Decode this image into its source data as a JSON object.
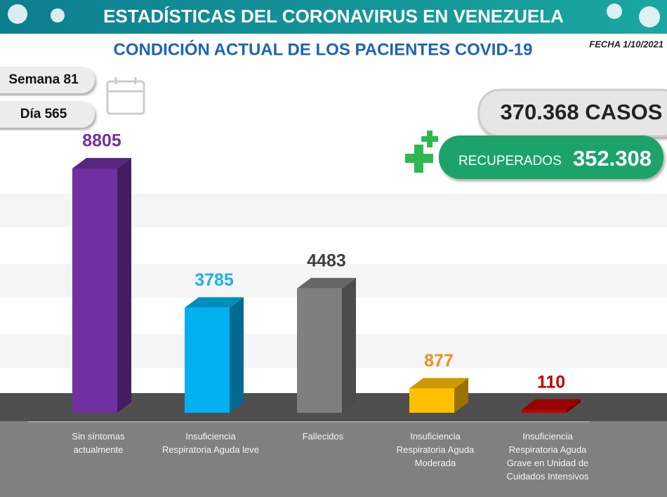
{
  "chart_data": {
    "type": "bar3d",
    "title": "ESTADÍSTICAS DEL CORONAVIRUS EN VENEZUELA",
    "subtitle": "CONDICIÓN ACTUAL DE LOS PACIENTES COVID-19",
    "date": "FECHA 1/10/2021",
    "week": "Semana 81",
    "day": "Día 565",
    "total_cases": "370.368 CASOS",
    "recovered_label": "RECUPERADOS",
    "recovered_value": "352.308",
    "categories": [
      "Sin síntomas actualmente",
      "Insuficiencia Respiratoria Aguda leve",
      "Fallecidos",
      "Insuficiencia Respiratoria Aguda Moderada",
      "Insuficiencia Respiratoria Aguda Grave en Unidad de Cuidados Intensivos"
    ],
    "values": [
      8805,
      3785,
      4483,
      877,
      110
    ],
    "colors": [
      "#7030a0",
      "#00b0f0",
      "#7f7f7f",
      "#ffc000",
      "#c00000"
    ],
    "label_colors": [
      "#7030a0",
      "#1fb0e8",
      "#404040",
      "#e6951e",
      "#c00000"
    ]
  }
}
